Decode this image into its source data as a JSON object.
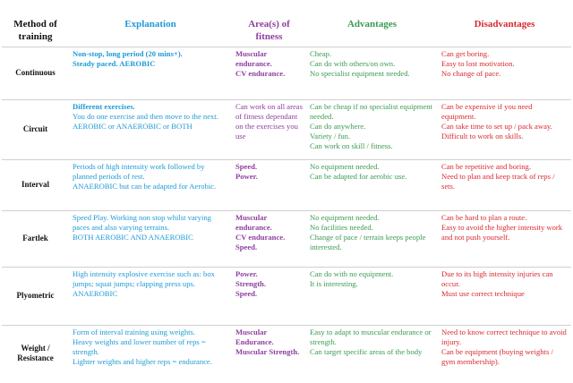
{
  "headers": {
    "method": "Method of training",
    "explanation": "Explanation",
    "areas": "Area(s) of fitness",
    "advantages": "Advantages",
    "disadvantages": "Disadvantages"
  },
  "rows": [
    {
      "method": "Continuous",
      "explanation": [
        "Non-stop, long period (20 mins+).",
        "Steady paced. AEROBIC"
      ],
      "areas": [
        "Muscular endurance.",
        "CV endurance."
      ],
      "advantages": [
        "Cheap.",
        "Can do with others/on own.",
        "No specialist equipment needed."
      ],
      "disadvantages": [
        "Can get boring.",
        "Easy to lost motivation.",
        "No change of pace."
      ]
    },
    {
      "method": "Circuit",
      "explanation": [
        "Different exercises.",
        "You do one exercise and then move to the next.",
        "AEROBIC or ANAEROBIC or BOTH"
      ],
      "areas": [
        "Can work on all areas of fitness dependant on the exercises you use"
      ],
      "advantages": [
        "Can be cheap if no specialist equipment needed.",
        "Can do anywhere.",
        "Variety / fun.",
        "Can work on skill / fitness."
      ],
      "disadvantages": [
        "Can be expensive if you need equipment.",
        "Can take time to set up / pack away.",
        "Difficult to work on skills."
      ]
    },
    {
      "method": "Interval",
      "explanation": [
        "Periods of high intensity work followed by planned periods of rest.",
        "ANAEROBIC but can be adapted for Aerobic."
      ],
      "areas": [
        "Speed.",
        "Power."
      ],
      "advantages": [
        "No equipment needed.",
        "Can be adapted for aerobic use."
      ],
      "disadvantages": [
        "Can be repetitive and boring.",
        "Need to plan and keep track of reps / sets."
      ]
    },
    {
      "method": "Fartlek",
      "explanation": [
        "Speed Play. Working non stop whilst varying paces and also varying terrains.",
        "BOTH AEROBIC AND ANAEROBIC"
      ],
      "areas": [
        "Muscular endurance.",
        "CV endurance.",
        "Speed."
      ],
      "advantages": [
        "No equipment needed.",
        "No facilities needed.",
        "Change of pace / terrain keeps people interested."
      ],
      "disadvantages": [
        "Can be hard to plan a route.",
        "Easy to avoid the higher intensity work and not push yourself."
      ]
    },
    {
      "method": "Plyometric",
      "explanation": [
        "High intensity explosive exercise such as: box jumps; squat jumps; clapping press ups.",
        "ANAEROBIC"
      ],
      "areas": [
        "Power.",
        "Strength.",
        "Speed."
      ],
      "advantages": [
        "Can do with no equipment.",
        "It is interesting."
      ],
      "disadvantages": [
        "Due to its high intensity injuries can occur.",
        "Must use correct technique"
      ]
    },
    {
      "method": "Weight / Resistance",
      "explanation": [
        "Form of interval training using weights.",
        "Heavy weights and lower number of reps = strength.",
        "Lighter weights and higher reps = endurance."
      ],
      "areas": [
        "Muscular Endurance.",
        "Muscular Strength."
      ],
      "advantages": [
        "Easy to adapt to muscular endurance or strength.",
        "Can target specific areas of the body"
      ],
      "disadvantages": [
        "Need to know correct technique to avoid injury.",
        "Can be equipment (buying weights / gym membership)."
      ]
    }
  ]
}
